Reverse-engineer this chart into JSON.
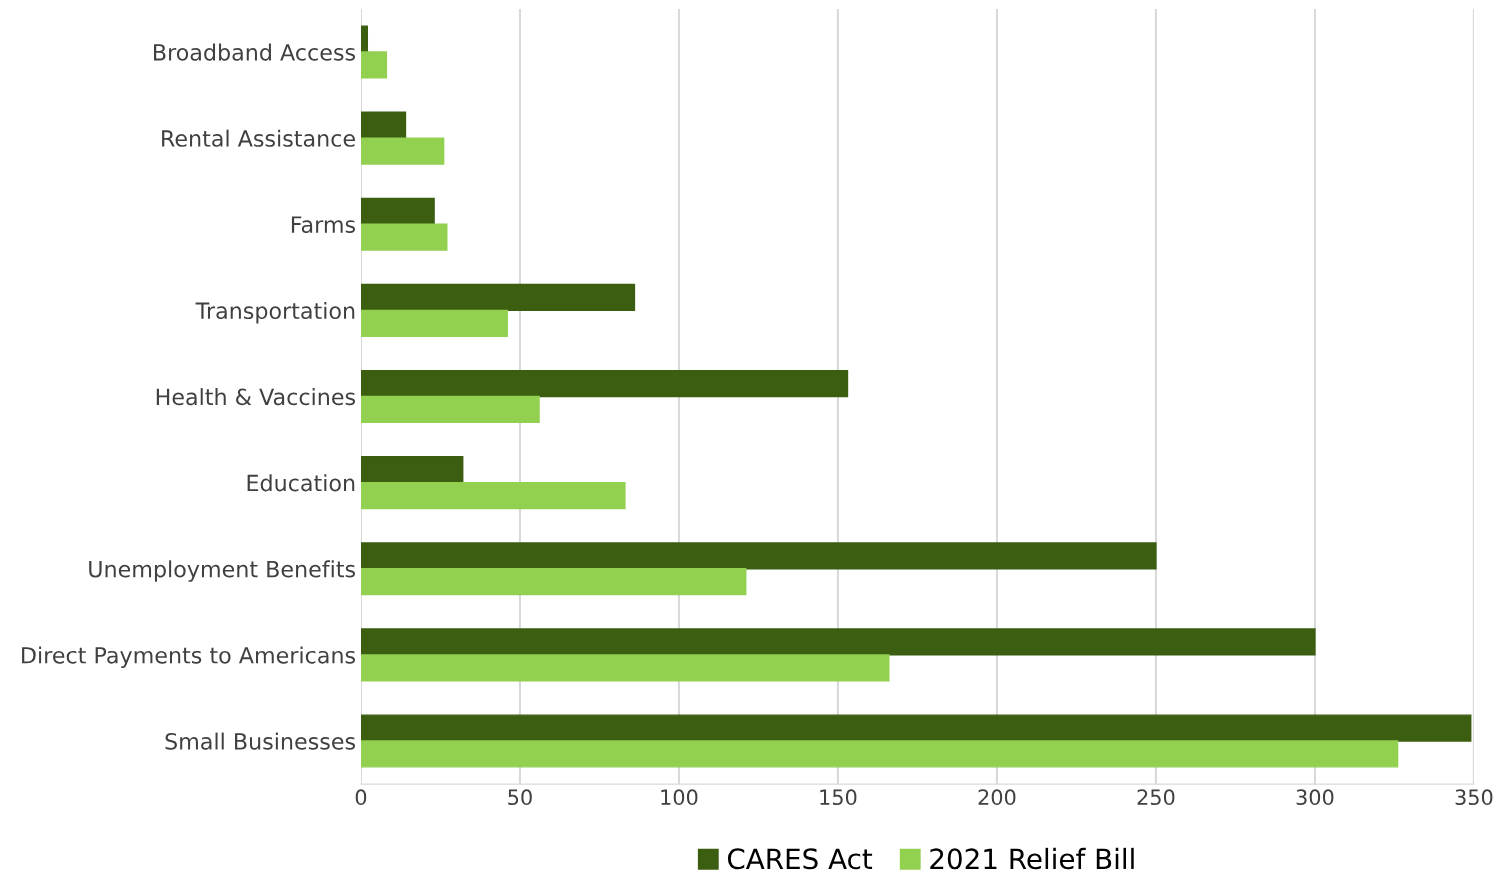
{
  "chart_data": {
    "type": "bar",
    "orientation": "horizontal",
    "categories": [
      "Broadband Access",
      "Rental Assistance",
      "Farms",
      "Transportation",
      "Health & Vaccines",
      "Education",
      "Unemployment Benefits",
      "Direct Payments to Americans",
      "Small Businesses"
    ],
    "series": [
      {
        "name": "CARES Act",
        "color": "#3b5e10",
        "values": [
          2,
          14,
          23,
          86,
          153,
          32,
          250,
          300,
          349
        ]
      },
      {
        "name": "2021 Relief Bill",
        "color": "#92d050",
        "values": [
          8,
          26,
          27,
          46,
          56,
          83,
          121,
          166,
          326
        ]
      }
    ],
    "xlim": [
      0,
      350
    ],
    "xticks": [
      0,
      50,
      100,
      150,
      200,
      250,
      300,
      350
    ],
    "grid": "x",
    "legend": "bottom"
  }
}
